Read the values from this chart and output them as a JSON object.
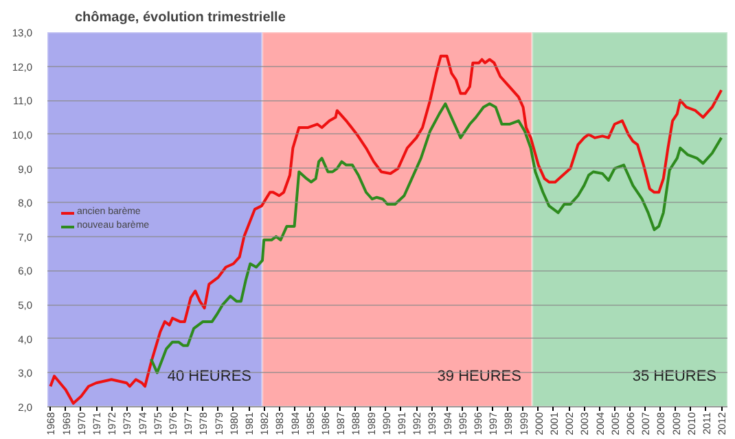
{
  "chart_data": {
    "type": "line",
    "title": "chômage, évolution trimestrielle",
    "xlim": [
      1967.8,
      2012.4
    ],
    "ylim": [
      2,
      13
    ],
    "xticks": [
      1968,
      1969,
      1970,
      1971,
      1972,
      1973,
      1974,
      1975,
      1976,
      1977,
      1978,
      1979,
      1980,
      1981,
      1982,
      1983,
      1984,
      1985,
      1986,
      1987,
      1988,
      1989,
      1990,
      1991,
      1992,
      1993,
      1994,
      1995,
      1996,
      1997,
      1998,
      1999,
      2000,
      2001,
      2002,
      2003,
      2004,
      2005,
      2006,
      2007,
      2008,
      2009,
      2010,
      2011,
      2012
    ],
    "yticks": [
      {
        "value": 2,
        "label": "2,0"
      },
      {
        "value": 3,
        "label": "3,0"
      },
      {
        "value": 4,
        "label": "4,0"
      },
      {
        "value": 5,
        "label": "5,0"
      },
      {
        "value": 6,
        "label": "6,0"
      },
      {
        "value": 7,
        "label": "7,0"
      },
      {
        "value": 8,
        "label": "8,0"
      },
      {
        "value": 9,
        "label": "9,0"
      },
      {
        "value": 10,
        "label": "10,0"
      },
      {
        "value": 11,
        "label": "11,0"
      },
      {
        "value": 12,
        "label": "12,0"
      },
      {
        "value": 13,
        "label": "13,0"
      }
    ],
    "grid": "y",
    "legend": "left",
    "bands": [
      {
        "axis": "x",
        "from": 1967.8,
        "to": 1981.9,
        "label": "40 HEURES",
        "color": "#aaaaee"
      },
      {
        "axis": "x",
        "from": 1981.9,
        "to": 1999.6,
        "label": "39 HEURES",
        "color": "#ffaaaa"
      },
      {
        "axis": "x",
        "from": 1999.6,
        "to": 2012.4,
        "label": "35 HEURES",
        "color": "#aadcb8"
      }
    ],
    "series": [
      {
        "name": "ancien barème",
        "color": "#ee1111",
        "x": [
          1968,
          1968.25,
          1969,
          1969.5,
          1970,
          1970.5,
          1971,
          1972,
          1973,
          1973.2,
          1973.6,
          1974,
          1974.2,
          1974.6,
          1975.2,
          1975.5,
          1975.8,
          1976,
          1976.5,
          1976.8,
          1977.2,
          1977.5,
          1977.8,
          1978.1,
          1978.4,
          1979,
          1979.5,
          1980,
          1980.4,
          1980.7,
          1981.4,
          1981.85,
          1982.4,
          1982.6,
          1983,
          1983.3,
          1983.7,
          1983.9,
          1984.3,
          1984.9,
          1985.5,
          1985.8,
          1986.3,
          1986.7,
          1986.8,
          1987.4,
          1988.1,
          1988.7,
          1989.2,
          1989.7,
          1990.3,
          1990.8,
          1991.4,
          1992.0,
          1992.4,
          1992.9,
          1993.3,
          1993.6,
          1994.0,
          1994.3,
          1994.6,
          1994.9,
          1995.2,
          1995.5,
          1995.7,
          1996.1,
          1996.3,
          1996.5,
          1996.8,
          1997.1,
          1997.5,
          1998.1,
          1998.7,
          1999.0,
          1999.2,
          1999.5,
          2000.0,
          2000.4,
          2000.7,
          2001.1,
          2001.6,
          2002.1,
          2002.6,
          2003.0,
          2003.3,
          2003.7,
          2004.2,
          2004.6,
          2005.0,
          2005.5,
          2005.9,
          2006.2,
          2006.5,
          2006.9,
          2007.3,
          2007.6,
          2007.9,
          2008.2,
          2008.5,
          2008.8,
          2009.1,
          2009.3,
          2009.7,
          2010.3,
          2010.8,
          2011.4,
          2012.0
        ],
        "values": [
          2.6,
          2.9,
          2.5,
          2.1,
          2.3,
          2.6,
          2.7,
          2.8,
          2.7,
          2.6,
          2.8,
          2.7,
          2.6,
          3.3,
          4.2,
          4.5,
          4.4,
          4.6,
          4.5,
          4.5,
          5.2,
          5.4,
          5.1,
          4.9,
          5.6,
          5.8,
          6.1,
          6.2,
          6.4,
          7.0,
          7.8,
          7.9,
          8.3,
          8.3,
          8.2,
          8.3,
          8.8,
          9.6,
          10.2,
          10.2,
          10.3,
          10.2,
          10.4,
          10.5,
          10.7,
          10.4,
          10.0,
          9.6,
          9.2,
          8.9,
          8.85,
          9.0,
          9.6,
          9.9,
          10.2,
          11.0,
          11.8,
          12.3,
          12.3,
          11.8,
          11.6,
          11.2,
          11.2,
          11.4,
          12.1,
          12.1,
          12.2,
          12.1,
          12.2,
          12.1,
          11.7,
          11.4,
          11.1,
          10.8,
          10.2,
          9.9,
          9.1,
          8.7,
          8.6,
          8.6,
          8.8,
          9.0,
          9.7,
          9.9,
          10.0,
          9.9,
          9.95,
          9.9,
          10.3,
          10.4,
          10.0,
          9.8,
          9.7,
          9.1,
          8.4,
          8.3,
          8.3,
          8.7,
          9.6,
          10.4,
          10.6,
          11.0,
          10.8,
          10.7,
          10.5,
          10.8,
          11.3
        ]
      },
      {
        "name": "nouveau barème",
        "color": "#2e8b1e",
        "x": [
          1974.6,
          1975.0,
          1975.6,
          1976.0,
          1976.4,
          1976.7,
          1977.0,
          1977.4,
          1978.0,
          1978.6,
          1978.9,
          1979.3,
          1979.8,
          1980.2,
          1980.5,
          1980.8,
          1981.1,
          1981.5,
          1981.9,
          1982.0,
          1982.5,
          1982.8,
          1983.1,
          1983.5,
          1984.0,
          1984.3,
          1984.8,
          1985.1,
          1985.4,
          1985.6,
          1985.8,
          1986.2,
          1986.5,
          1986.8,
          1987.1,
          1987.4,
          1987.8,
          1988.2,
          1988.7,
          1989.1,
          1989.4,
          1989.8,
          1990.1,
          1990.6,
          1991.2,
          1991.7,
          1992.3,
          1992.9,
          1993.5,
          1993.9,
          1994.3,
          1994.9,
          1995.5,
          1995.9,
          1996.4,
          1996.8,
          1997.2,
          1997.6,
          1998.1,
          1998.7,
          1999.1,
          1999.5,
          1999.8,
          2000.3,
          2000.7,
          2001.3,
          2001.7,
          2002.1,
          2002.6,
          2003.0,
          2003.3,
          2003.6,
          2004.2,
          2004.6,
          2005.0,
          2005.6,
          2006.2,
          2006.8,
          2007.2,
          2007.6,
          2007.9,
          2008.2,
          2008.6,
          2009.1,
          2009.3,
          2009.8,
          2010.4,
          2010.8,
          2011.4,
          2012.0
        ],
        "values": [
          3.4,
          3.0,
          3.7,
          3.9,
          3.9,
          3.8,
          3.8,
          4.3,
          4.5,
          4.5,
          4.7,
          5.0,
          5.25,
          5.1,
          5.1,
          5.7,
          6.2,
          6.1,
          6.3,
          6.9,
          6.9,
          7.0,
          6.9,
          7.3,
          7.3,
          8.9,
          8.7,
          8.6,
          8.7,
          9.2,
          9.3,
          8.9,
          8.9,
          9.0,
          9.2,
          9.1,
          9.1,
          8.8,
          8.3,
          8.1,
          8.15,
          8.1,
          7.95,
          7.95,
          8.2,
          8.7,
          9.3,
          10.1,
          10.6,
          10.9,
          10.5,
          9.9,
          10.3,
          10.5,
          10.8,
          10.9,
          10.8,
          10.3,
          10.3,
          10.4,
          10.1,
          9.6,
          8.9,
          8.3,
          7.9,
          7.7,
          7.95,
          7.95,
          8.2,
          8.5,
          8.8,
          8.9,
          8.85,
          8.65,
          9.0,
          9.1,
          8.5,
          8.1,
          7.7,
          7.2,
          7.3,
          7.7,
          8.95,
          9.3,
          9.6,
          9.4,
          9.3,
          9.15,
          9.45,
          9.9
        ]
      }
    ]
  }
}
